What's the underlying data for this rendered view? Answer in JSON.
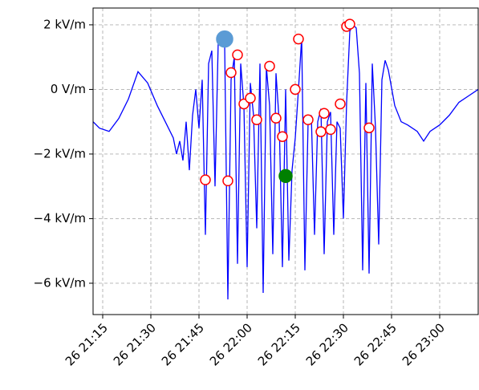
{
  "chart_data": {
    "type": "line",
    "xlim": [
      "26 21:12",
      "26 23:12"
    ],
    "xticks": [
      "26 21:15",
      "26 21:30",
      "26 21:45",
      "26 22:00",
      "26 22:15",
      "26 22:30",
      "26 22:45",
      "26 23:00"
    ],
    "ylim": [
      -6.97,
      2.52
    ],
    "yticks": [
      {
        "value": -6,
        "label": "−6 kV/m"
      },
      {
        "value": -4,
        "label": "−4 kV/m"
      },
      {
        "value": -2,
        "label": "−2 kV/m"
      },
      {
        "value": 0,
        "label": "0 V/m"
      },
      {
        "value": 2,
        "label": "2 kV/m"
      }
    ],
    "grid": true,
    "series": [
      {
        "type": "line",
        "color": "blue",
        "x": [
          "26 21:12",
          "26 21:14",
          "26 21:17",
          "26 21:20",
          "26 21:23",
          "26 21:26",
          "26 21:29",
          "26 21:32",
          "26 21:35",
          "26 21:37",
          "26 21:38",
          "26 21:39",
          "26 21:40",
          "26 21:41",
          "26 21:42",
          "26 21:43",
          "26 21:44",
          "26 21:45",
          "26 21:46",
          "26 21:47",
          "26 21:48",
          "26 21:49",
          "26 21:50",
          "26 21:51",
          "26 21:52",
          "26 21:53",
          "26 21:54",
          "26 21:55",
          "26 21:56",
          "26 21:57",
          "26 21:58",
          "26 21:59",
          "26 22:00",
          "26 22:01",
          "26 22:02",
          "26 22:03",
          "26 22:04",
          "26 22:05",
          "26 22:06",
          "26 22:07",
          "26 22:08",
          "26 22:09",
          "26 22:10",
          "26 22:11",
          "26 22:12",
          "26 22:13",
          "26 22:14",
          "26 22:15",
          "26 22:16",
          "26 22:17",
          "26 22:18",
          "26 22:19",
          "26 22:20",
          "26 22:21",
          "26 22:22",
          "26 22:23",
          "26 22:24",
          "26 22:25",
          "26 22:26",
          "26 22:27",
          "26 22:28",
          "26 22:29",
          "26 22:30",
          "26 22:31",
          "26 22:32",
          "26 22:33",
          "26 22:34",
          "26 22:35",
          "26 22:36",
          "26 22:37",
          "26 22:38",
          "26 22:39",
          "26 22:40",
          "26 22:41",
          "26 22:42",
          "26 22:43",
          "26 22:44",
          "26 22:46",
          "26 22:48",
          "26 22:50",
          "26 22:53",
          "26 22:55",
          "26 22:57",
          "26 23:00",
          "26 23:03",
          "26 23:06",
          "26 23:09",
          "26 23:12"
        ],
        "values": [
          -1.0,
          -1.2,
          -1.3,
          -0.9,
          -0.3,
          0.55,
          0.2,
          -0.5,
          -1.1,
          -1.5,
          -2.0,
          -1.6,
          -2.2,
          -1.0,
          -2.5,
          -0.8,
          0.0,
          -1.2,
          0.3,
          -4.5,
          0.8,
          1.2,
          -3.0,
          1.5,
          1.6,
          1.4,
          -6.5,
          0.3,
          1.0,
          -5.4,
          0.8,
          -0.5,
          -5.5,
          0.2,
          -0.8,
          -4.3,
          0.8,
          -6.3,
          0.7,
          -0.5,
          -5.1,
          0.5,
          -1.0,
          -5.5,
          0.0,
          -5.3,
          -2.5,
          -1.5,
          0.0,
          1.6,
          -5.6,
          -1.0,
          -0.8,
          -4.5,
          -1.0,
          -0.6,
          -5.1,
          -1.0,
          -0.7,
          -4.5,
          -1.0,
          -1.2,
          -4.0,
          -0.4,
          1.8,
          2.0,
          1.9,
          0.5,
          -5.6,
          0.2,
          -5.7,
          0.8,
          -1.2,
          -4.8,
          0.3,
          0.9,
          0.6,
          -0.5,
          -1.0,
          -1.1,
          -1.3,
          -1.6,
          -1.3,
          -1.1,
          -0.8,
          -0.4,
          -0.2,
          0.0
        ]
      },
      {
        "type": "scatter",
        "color": "red",
        "marker_fill": "white",
        "marker_size": 6,
        "x": [
          "26 21:47",
          "26 21:54",
          "26 21:55",
          "26 21:57",
          "26 21:59",
          "26 22:01",
          "26 22:03",
          "26 22:07",
          "26 22:09",
          "26 22:11",
          "26 22:15",
          "26 22:16",
          "26 22:19",
          "26 22:23",
          "26 22:24",
          "26 22:26",
          "26 22:29",
          "26 22:31",
          "26 22:32",
          "26 22:38"
        ],
        "values": [
          -2.8,
          -2.83,
          0.52,
          1.07,
          -0.45,
          -0.27,
          -0.94,
          0.72,
          -0.89,
          -1.46,
          0.0,
          1.56,
          -0.94,
          -1.31,
          -0.74,
          -1.24,
          -0.45,
          1.95,
          2.02,
          -1.19
        ]
      },
      {
        "type": "scatter",
        "color": "#5b9bd5",
        "marker_fill": "#5b9bd5",
        "marker_size": 10,
        "x": [
          "26 21:53"
        ],
        "values": [
          1.56
        ]
      },
      {
        "type": "scatter",
        "color": "green",
        "marker_fill": "green",
        "marker_size": 8,
        "x": [
          "26 22:12"
        ],
        "values": [
          -2.68
        ]
      }
    ]
  }
}
